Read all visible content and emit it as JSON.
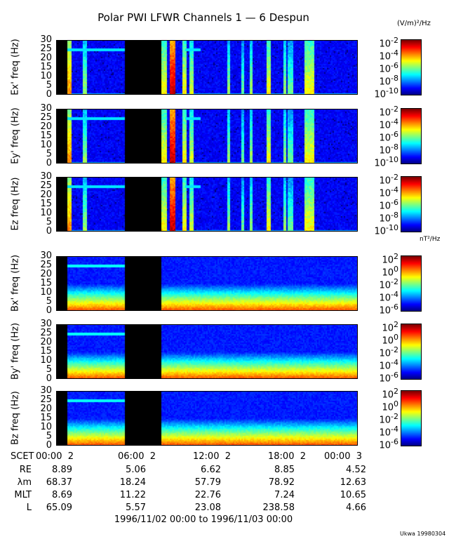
{
  "title": "Polar PWI LFWR Channels 1 — 6 Despun",
  "e_unit": "(V/m)²/Hz",
  "b_unit": "nT²/Hz",
  "chart_data": [
    {
      "type": "heatmap",
      "ylabel": "Ex' freq (Hz)",
      "ylim": [
        0,
        30
      ],
      "yticks": [
        0,
        5,
        10,
        15,
        20,
        25,
        30
      ],
      "colorbar": {
        "ticks": [
          "10^-2",
          "10^-4",
          "10^-6",
          "10^-8",
          "10^-10"
        ],
        "unit": "(V/m)²/Hz"
      }
    },
    {
      "type": "heatmap",
      "ylabel": "Ey' freq (Hz)",
      "ylim": [
        0,
        30
      ],
      "yticks": [
        0,
        5,
        10,
        15,
        20,
        25,
        30
      ],
      "colorbar": {
        "ticks": [
          "10^-2",
          "10^-4",
          "10^-6",
          "10^-8",
          "10^-10"
        ]
      }
    },
    {
      "type": "heatmap",
      "ylabel": "Ez freq (Hz)",
      "ylim": [
        0,
        30
      ],
      "yticks": [
        0,
        5,
        10,
        15,
        20,
        25,
        30
      ],
      "colorbar": {
        "ticks": [
          "10^-2",
          "10^-4",
          "10^-6",
          "10^-8",
          "10^-10"
        ]
      }
    },
    {
      "type": "heatmap",
      "ylabel": "Bx' freq (Hz)",
      "ylim": [
        0,
        30
      ],
      "yticks": [
        0,
        5,
        10,
        15,
        20,
        25,
        30
      ],
      "colorbar": {
        "ticks": [
          "10^2",
          "10^0",
          "10^-2",
          "10^-4",
          "10^-6"
        ],
        "unit": "nT²/Hz"
      }
    },
    {
      "type": "heatmap",
      "ylabel": "By' freq (Hz)",
      "ylim": [
        0,
        30
      ],
      "yticks": [
        0,
        5,
        10,
        15,
        20,
        25,
        30
      ],
      "colorbar": {
        "ticks": [
          "10^2",
          "10^0",
          "10^-2",
          "10^-4",
          "10^-6"
        ]
      }
    },
    {
      "type": "heatmap",
      "ylabel": "Bz freq (Hz)",
      "ylim": [
        0,
        30
      ],
      "yticks": [
        0,
        5,
        10,
        15,
        20,
        25,
        30
      ],
      "colorbar": {
        "ticks": [
          "10^2",
          "10^0",
          "10^-2",
          "10^-4",
          "10^-6"
        ]
      }
    }
  ],
  "xaxis": {
    "label": "SCET",
    "ticks": [
      "00:00  2",
      "06:00  2",
      "12:00  2",
      "18:00  2",
      "00:00  3"
    ]
  },
  "ephemeris": [
    {
      "label": "RE",
      "values": [
        "8.89",
        "5.06",
        "6.62",
        "8.85",
        "4.52"
      ]
    },
    {
      "label": "λm",
      "values": [
        "68.37",
        "18.24",
        "57.79",
        "78.92",
        "12.63"
      ]
    },
    {
      "label": "MLT",
      "values": [
        "8.69",
        "11.22",
        "22.76",
        "7.24",
        "10.65"
      ]
    },
    {
      "label": "L",
      "values": [
        "65.09",
        "5.57",
        "23.08",
        "238.58",
        "4.66"
      ]
    }
  ],
  "range": "1996/11/02 00:00 to 1996/11/03 00:00",
  "credit": "Ukwa 19980304"
}
